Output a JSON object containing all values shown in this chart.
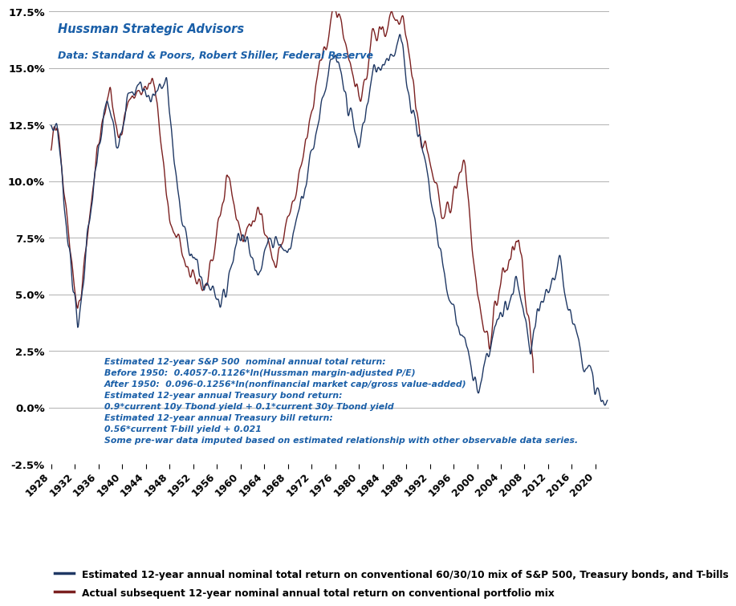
{
  "title_line1": "Hussman Strategic Advisors",
  "title_line2": "Data: Standard & Poors, Robert Shiller, Federal Reserve",
  "annotation_lines": [
    "Estimated 12-year S&P 500  nominal annual total return:",
    "Before 1950:  0.4057-0.1126*ln(Hussman margin-adjusted P/E)",
    "After 1950:  0.096-0.1256*ln(nonfinancial market cap/gross value-added)",
    "Estimated 12-year annual Treasury bond return:",
    "0.9*current 10y Tbond yield + 0.1*current 30y Tbond yield",
    "Estimated 12-year annual Treasury bill return:",
    "0.56*current T-bill yield + 0.021",
    "Some pre-war data imputed based on estimated relationship with other observable data series."
  ],
  "legend_estimated": "Estimated 12-year annual nominal total return on conventional 60/30/10 mix of S&P 500, Treasury bonds, and T-bills",
  "legend_actual": "Actual subsequent 12-year nominal annual total return on conventional portfolio mix",
  "estimated_color": "#1f3864",
  "actual_color": "#7b2020",
  "ylim_min": -0.025,
  "ylim_max": 0.175,
  "ytick_values": [
    -0.025,
    0.0,
    0.025,
    0.05,
    0.075,
    0.1,
    0.125,
    0.15,
    0.175
  ],
  "ytick_labels": [
    "-2.5%",
    "0.0%",
    "2.5%",
    "5.0%",
    "7.5%",
    "10.0%",
    "12.5%",
    "15.0%",
    "17.5%"
  ],
  "xtick_years": [
    1928,
    1932,
    1936,
    1940,
    1944,
    1948,
    1952,
    1956,
    1960,
    1964,
    1968,
    1972,
    1976,
    1980,
    1984,
    1988,
    1992,
    1996,
    2000,
    2004,
    2008,
    2012,
    2016,
    2020
  ],
  "background_color": "#ffffff",
  "grid_color": "#b0b0b0",
  "start_year": 1928,
  "end_year": 2022,
  "title_color": "#1a5fa8",
  "annotation_color": "#1a5fa8"
}
